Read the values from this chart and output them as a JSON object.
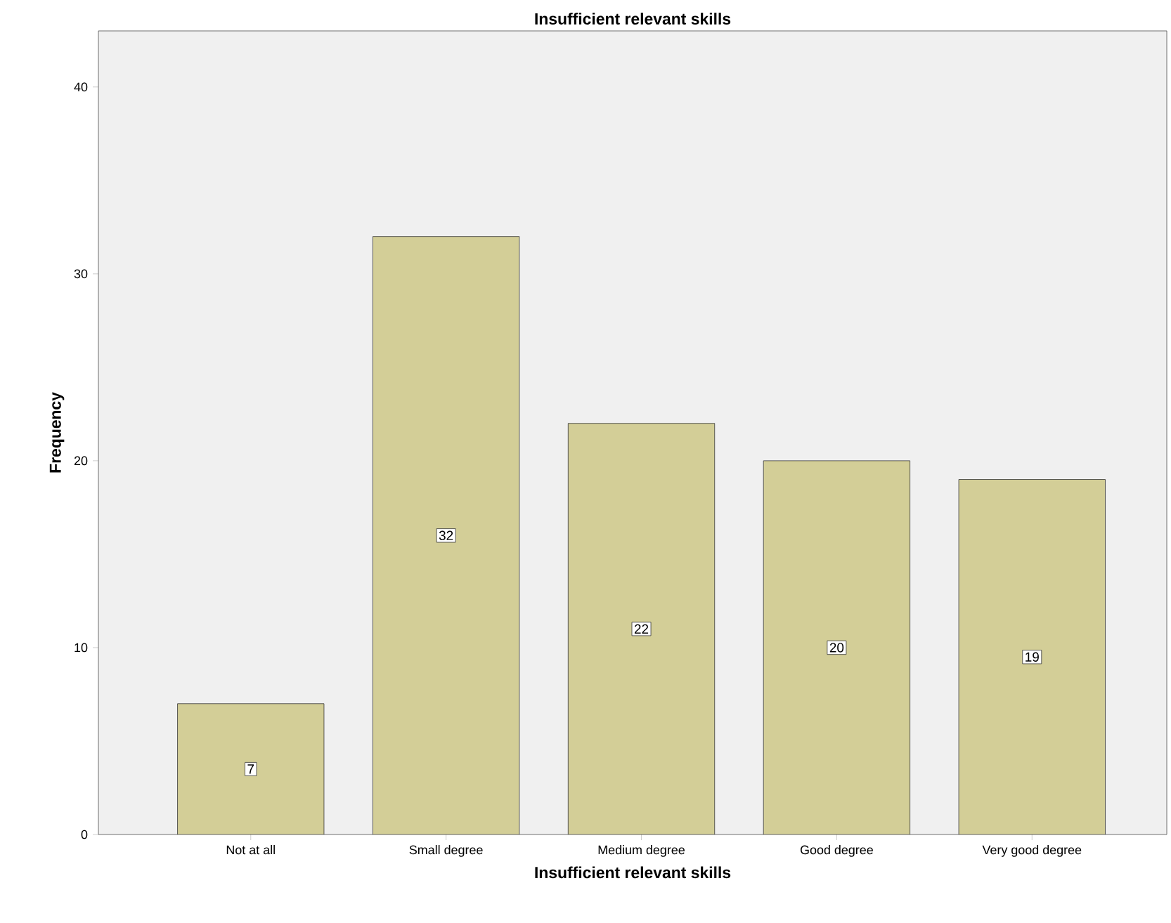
{
  "chart_data": {
    "type": "bar",
    "title": "Insufficient relevant skills",
    "xlabel": "Insufficient relevant skills",
    "ylabel": "Frequency",
    "categories": [
      "Not at all",
      "Small degree",
      "Medium degree",
      "Good degree",
      "Very good degree"
    ],
    "values": [
      7,
      32,
      22,
      20,
      19
    ],
    "color": "#d3ce97",
    "ylim": [
      0,
      43
    ],
    "yticks": [
      0,
      10,
      20,
      30,
      40
    ],
    "data_labels": true
  }
}
